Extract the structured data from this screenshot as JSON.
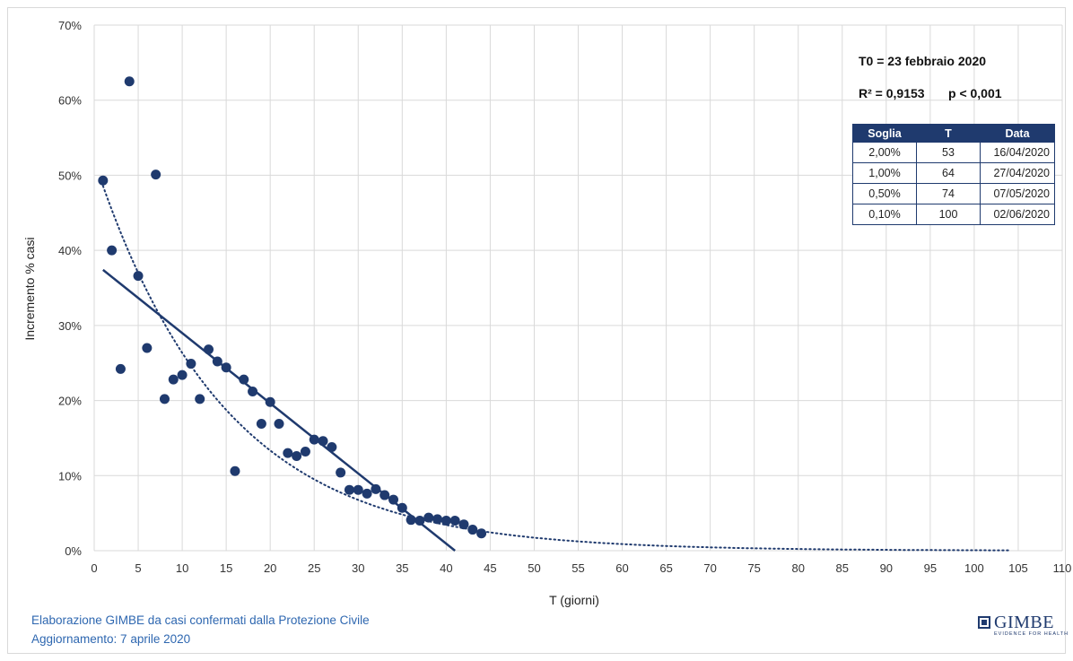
{
  "chart_data": {
    "type": "scatter",
    "xlabel": "T (giorni)",
    "ylabel": "Incremento % casi",
    "xlim": [
      0,
      110
    ],
    "ylim": [
      0,
      70
    ],
    "x_ticks": [
      0,
      5,
      10,
      15,
      20,
      25,
      30,
      35,
      40,
      45,
      50,
      55,
      60,
      65,
      70,
      75,
      80,
      85,
      90,
      95,
      100,
      105,
      110
    ],
    "y_ticks": [
      0,
      10,
      20,
      30,
      40,
      50,
      60,
      70
    ],
    "y_tick_format": "percent",
    "grid": true,
    "series": [
      {
        "type": "scatter",
        "color": "#1f3a6e",
        "points": [
          [
            1,
            49.3
          ],
          [
            2,
            40.0
          ],
          [
            3,
            24.2
          ],
          [
            4,
            62.5
          ],
          [
            5,
            36.6
          ],
          [
            6,
            27.0
          ],
          [
            7,
            50.1
          ],
          [
            8,
            20.2
          ],
          [
            9,
            22.8
          ],
          [
            10,
            23.4
          ],
          [
            11,
            24.9
          ],
          [
            12,
            20.2
          ],
          [
            13,
            26.8
          ],
          [
            14,
            25.2
          ],
          [
            15,
            24.4
          ],
          [
            16,
            10.6
          ],
          [
            17,
            22.8
          ],
          [
            18,
            21.2
          ],
          [
            19,
            16.9
          ],
          [
            20,
            19.8
          ],
          [
            21,
            16.9
          ],
          [
            22,
            13.0
          ],
          [
            23,
            12.6
          ],
          [
            24,
            13.2
          ],
          [
            25,
            14.8
          ],
          [
            26,
            14.6
          ],
          [
            27,
            13.8
          ],
          [
            28,
            10.4
          ],
          [
            29,
            8.1
          ],
          [
            30,
            8.1
          ],
          [
            31,
            7.6
          ],
          [
            32,
            8.2
          ],
          [
            33,
            7.4
          ],
          [
            34,
            6.8
          ],
          [
            35,
            5.7
          ],
          [
            36,
            4.1
          ],
          [
            37,
            4.0
          ],
          [
            38,
            4.4
          ],
          [
            39,
            4.2
          ],
          [
            40,
            4.0
          ],
          [
            41,
            4.0
          ],
          [
            42,
            3.5
          ],
          [
            43,
            2.8
          ],
          [
            44,
            2.3
          ]
        ]
      },
      {
        "type": "line",
        "style": "solid",
        "color": "#1f3a6e",
        "points": [
          [
            1,
            37.4
          ],
          [
            41,
            0
          ]
        ]
      },
      {
        "type": "line",
        "style": "dotted",
        "color": "#1f3a6e",
        "equation": "y = 52 * exp(-0.068 * x)",
        "x_range": [
          1,
          104
        ]
      }
    ]
  },
  "info": {
    "t0": "T0 = 23 febbraio 2020",
    "r2": "R² = 0,9153",
    "p": "p < 0,001"
  },
  "table": {
    "headers": [
      "Soglia",
      "T",
      "Data"
    ],
    "rows": [
      [
        "2,00%",
        "53",
        "16/04/2020"
      ],
      [
        "1,00%",
        "64",
        "27/04/2020"
      ],
      [
        "0,50%",
        "74",
        "07/05/2020"
      ],
      [
        "0,10%",
        "100",
        "02/06/2020"
      ]
    ]
  },
  "footer": {
    "line1": "Elaborazione GIMBE da casi confermati dalla Protezione Civile",
    "line2": "Aggiornamento: 7 aprile 2020"
  },
  "logo": {
    "name": "GIMBE",
    "tagline": "EVIDENCE FOR HEALTH"
  }
}
